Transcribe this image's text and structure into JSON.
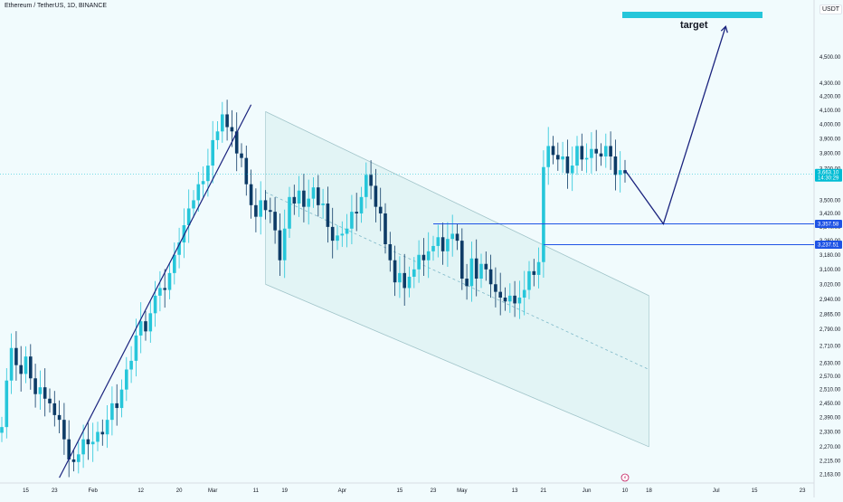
{
  "header": {
    "title": "Ethereum / TetherUS, 1D, BINANCE",
    "currency": "USDT"
  },
  "annotations": {
    "target_label": "target"
  },
  "colors": {
    "background": "#f1fbfd",
    "bull": "#26c6da",
    "bear": "#0d3b66",
    "channel_line": "#9fc3c8",
    "channel_fill": "#dff2f3",
    "trend_line": "#1a237e",
    "level_line": "#1e53e5",
    "last_price": "#00bcd4",
    "target_box": "#26c6da",
    "projection": "#1a237e"
  },
  "chart_data": {
    "type": "candlestick",
    "title": "Ethereum / TetherUS, 1D, BINANCE",
    "currency": "USDT",
    "y_scale": "log",
    "ylim": [
      2130,
      4820
    ],
    "yticks": [
      "4,500.00",
      "4,300.00",
      "4,200.00",
      "4,100.00",
      "4,000.00",
      "3,900.00",
      "3,800.00",
      "3,700.00",
      "3,500.00",
      "3,420.00",
      "3,340.00",
      "3,260.00",
      "3,180.00",
      "3,100.00",
      "3,020.00",
      "2,940.00",
      "2,865.00",
      "2,790.00",
      "2,710.00",
      "2,630.00",
      "2,570.00",
      "2,510.00",
      "2,450.00",
      "2,390.00",
      "2,330.00",
      "2,270.00",
      "2,215.00",
      "2,163.00"
    ],
    "xticks": [
      "15",
      "23",
      "Feb",
      "12",
      "20",
      "Mar",
      "11",
      "19",
      "Apr",
      "15",
      "23",
      "May",
      "13",
      "21",
      "Jun",
      "10",
      "18",
      "Jul",
      "15",
      "23"
    ],
    "last_price": {
      "value": "3,663.10",
      "countdown": "14:30:29"
    },
    "levels": [
      {
        "value": 3357.58,
        "label": "3,357.58"
      },
      {
        "value": 3237.51,
        "label": "3,237.51"
      }
    ],
    "closes": [
      2350,
      2550,
      2700,
      2620,
      2580,
      2660,
      2560,
      2490,
      2520,
      2470,
      2450,
      2400,
      2380,
      2300,
      2220,
      2210,
      2240,
      2300,
      2280,
      2290,
      2330,
      2320,
      2380,
      2450,
      2430,
      2510,
      2600,
      2640,
      2760,
      2830,
      2780,
      2870,
      2960,
      3000,
      2990,
      3080,
      3180,
      3250,
      3350,
      3450,
      3500,
      3600,
      3620,
      3720,
      3890,
      3950,
      4070,
      3980,
      3950,
      3800,
      3770,
      3600,
      3470,
      3400,
      3500,
      3440,
      3430,
      3320,
      3150,
      3330,
      3520,
      3480,
      3560,
      3460,
      3510,
      3580,
      3470,
      3480,
      3340,
      3260,
      3290,
      3300,
      3330,
      3430,
      3420,
      3520,
      3660,
      3590,
      3460,
      3420,
      3240,
      3150,
      3030,
      3080,
      3000,
      3060,
      3100,
      3180,
      3150,
      3200,
      3230,
      3280,
      3200,
      3270,
      3300,
      3260,
      3050,
      3010,
      3160,
      3050,
      3130,
      3100,
      3020,
      2980,
      2950,
      2930,
      2960,
      2920,
      2950,
      2990,
      3090,
      3070,
      3140,
      3710,
      3850,
      3790,
      3760,
      3780,
      3670,
      3720,
      3850,
      3760,
      3770,
      3830,
      3800,
      3780,
      3850,
      3780,
      3660,
      3690,
      3670
    ],
    "projection_path": [
      {
        "candle": 130,
        "value": 3690
      },
      {
        "candle": 138,
        "value": 3357.58
      },
      {
        "candle": 151,
        "value": 4750
      }
    ]
  }
}
